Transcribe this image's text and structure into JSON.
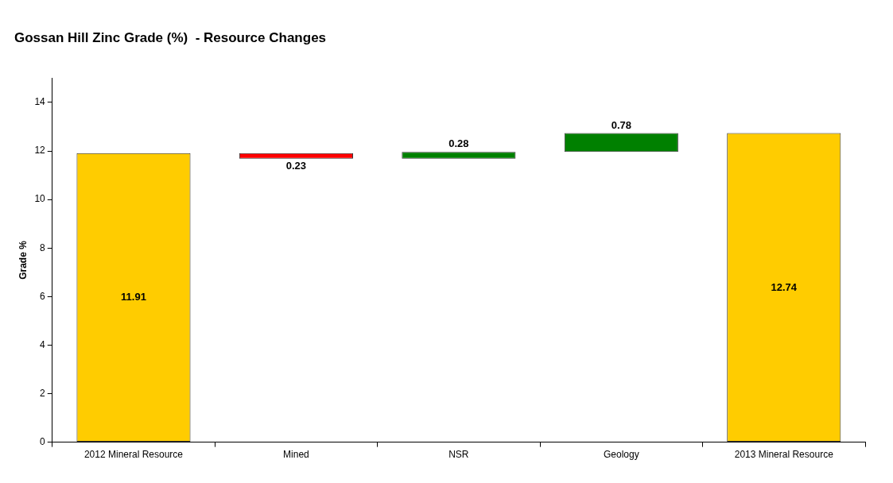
{
  "chart_data": {
    "type": "bar",
    "title": "Gossan Hill Zinc Grade (%)  - Resource Changes",
    "ylabel": "Grade %",
    "categories": [
      "2012 Mineral Resource",
      "Mined",
      "NSR",
      "Geology",
      "2013 Mineral Resource"
    ],
    "values": [
      11.91,
      -0.23,
      0.28,
      0.78,
      12.74
    ],
    "base": [
      0,
      11.91,
      11.68,
      11.96,
      0
    ],
    "colors": [
      "#ffcc00",
      "#ff0000",
      "#008000",
      "#008000",
      "#ffcc00"
    ],
    "value_labels": [
      "11.91",
      "0.23",
      "0.28",
      "0.78",
      "12.74"
    ],
    "ylim": [
      0,
      15
    ],
    "yticks": [
      0,
      2,
      4,
      6,
      8,
      10,
      12,
      14
    ],
    "grid": false,
    "legend": false
  }
}
